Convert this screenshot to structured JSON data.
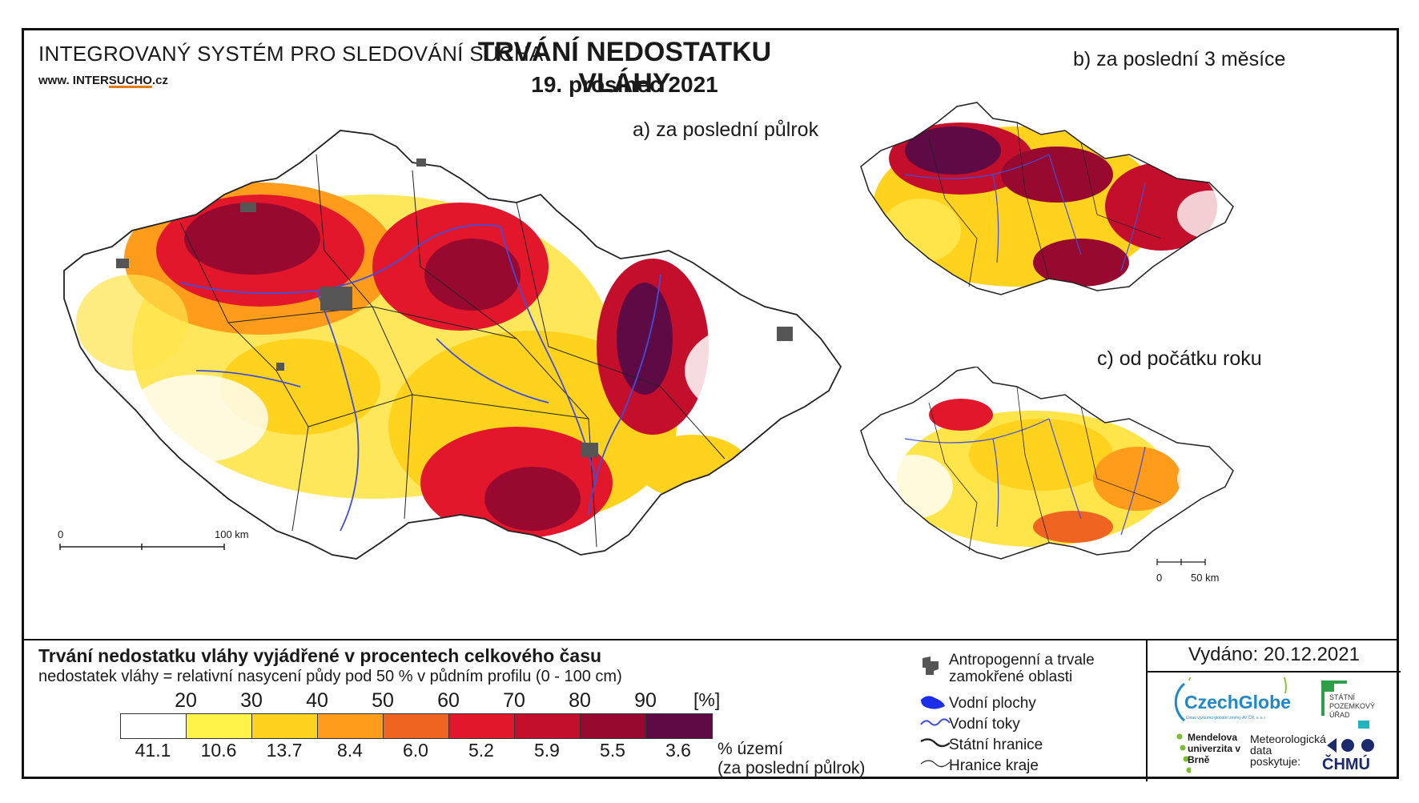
{
  "header": {
    "system_title": "INTEGROVANÝ SYSTÉM PRO SLEDOVÁNÍ SUCHA",
    "website_prefix": "www. INTER",
    "website_brand": "SUCHO",
    "website_suffix": ".cz",
    "main_title": "TRVÁNÍ NEDOSTATKU VLÁHY",
    "date": "19. prosinec 2021"
  },
  "maps": {
    "a_title": "a) za poslední půlrok",
    "b_title": "b) za poslední 3 měsíce",
    "c_title": "c) od počátku roku",
    "scale_a": {
      "start": "0",
      "end": "100 km"
    },
    "scale_c": {
      "start": "0",
      "end": "50 km"
    }
  },
  "legend": {
    "title": "Trvání nedostatku vláhy vyjádřené v procentech celkového času",
    "subtitle": "nedostatek vláhy = relativní nasycení půdy pod 50 % v půdním profilu (0 - 100 cm)",
    "ticks": [
      "20",
      "30",
      "40",
      "50",
      "60",
      "70",
      "80",
      "90"
    ],
    "unit": "[%]",
    "colors": [
      "#ffffff",
      "#fff34a",
      "#ffd21e",
      "#ff9c1c",
      "#f06422",
      "#e3172c",
      "#c40f2c",
      "#97092e",
      "#5e0a44"
    ],
    "percent_territory": [
      "41.1",
      "10.6",
      "13.7",
      "8.4",
      "6.0",
      "5.2",
      "5.9",
      "5.5",
      "3.6"
    ],
    "percent_caption_1": "% území",
    "percent_caption_2": "(za poslední půlrok)"
  },
  "symbols": {
    "urban": "Antropogenní a trvale zamokřené oblasti",
    "water_bodies": "Vodní plochy",
    "rivers": "Vodní toky",
    "state_border": "Státní hranice",
    "region_border": "Hranice kraje"
  },
  "footer": {
    "issued": "Vydáno: 20.12.2021",
    "czechglobe": "CzechGlobe",
    "czechglobe_small": "Ústav výzkumu globální změny AV ČR, v. v. i.",
    "spu": "STÁTNÍ POZEMKOVÝ ÚŘAD",
    "mendel": "Mendelova univerzita v Brně",
    "meteo": "Meteorologická data poskytuje:",
    "chmu": "ČHMÚ"
  }
}
